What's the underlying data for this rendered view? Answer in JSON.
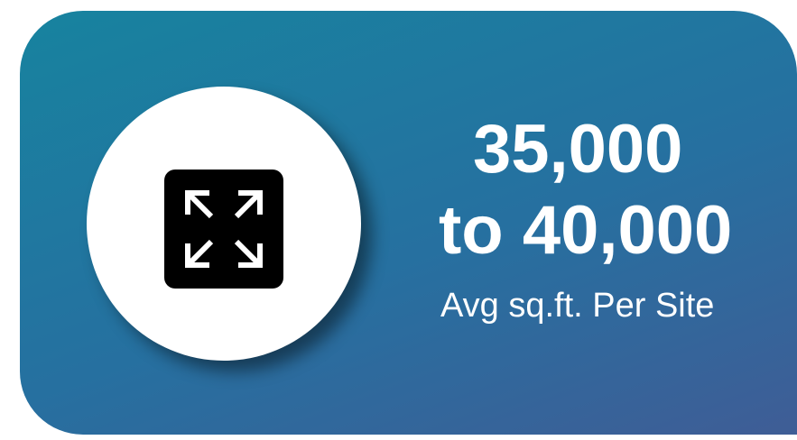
{
  "card": {
    "line1": "35,000",
    "line2": "to 40,000",
    "caption": "Avg sq.ft. Per Site"
  }
}
